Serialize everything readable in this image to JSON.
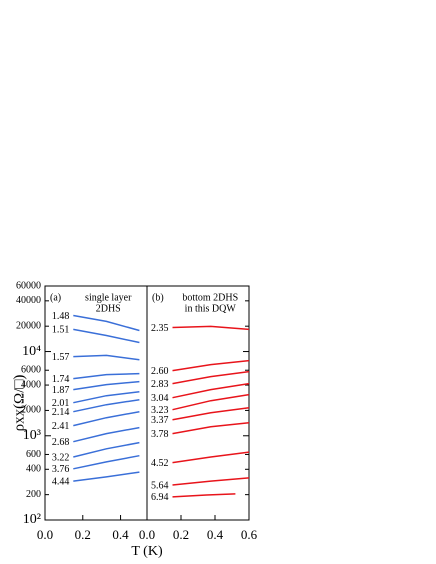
{
  "chart_data": [
    {
      "type": "line",
      "ylabel": "ρxx(Ω/□)",
      "xlabel": "T (K)",
      "yscale": "log",
      "color": "#3a6fd8",
      "annotations": [
        "(a)",
        "single layer",
        "2DHS"
      ],
      "xlim": [
        0,
        0.54
      ],
      "xticks": [
        {
          "value": 0,
          "label": "0.0"
        },
        {
          "value": 0.2,
          "label": "0.2"
        },
        {
          "value": 0.4,
          "label": "0.4"
        }
      ],
      "ylim": [
        100,
        60000
      ],
      "yticks": [
        {
          "value": 100,
          "label": "10²"
        },
        200,
        400,
        600,
        {
          "value": 1000,
          "label": "10³"
        },
        2000,
        4000,
        6000,
        {
          "value": 10000,
          "label": "10⁴"
        },
        20000,
        40000,
        60000
      ],
      "series": [
        {
          "name": "1.48",
          "x": [
            0.15,
            0.325,
            0.5
          ],
          "values": [
            26800,
            22800,
            17800
          ]
        },
        {
          "name": "1.51",
          "x": [
            0.15,
            0.325,
            0.5
          ],
          "values": [
            18300,
            15500,
            12800
          ]
        },
        {
          "name": "1.57",
          "x": [
            0.15,
            0.325,
            0.5
          ],
          "values": [
            8700,
            9000,
            8000
          ]
        },
        {
          "name": "1.74",
          "x": [
            0.15,
            0.325,
            0.5
          ],
          "values": [
            4770,
            5320,
            5470
          ]
        },
        {
          "name": "1.87",
          "x": [
            0.15,
            0.325,
            0.5
          ],
          "values": [
            3530,
            4050,
            4400
          ]
        },
        {
          "name": "2.01",
          "x": [
            0.15,
            0.325,
            0.5
          ],
          "values": [
            2470,
            2990,
            3340
          ]
        },
        {
          "name": "2.14",
          "x": [
            0.15,
            0.325,
            0.5
          ],
          "values": [
            1930,
            2340,
            2680
          ]
        },
        {
          "name": "2.41",
          "x": [
            0.15,
            0.325,
            0.5
          ],
          "values": [
            1320,
            1640,
            1930
          ]
        },
        {
          "name": "2.68",
          "x": [
            0.15,
            0.325,
            0.5
          ],
          "values": [
            850,
            1060,
            1250
          ]
        },
        {
          "name": "3.22",
          "x": [
            0.15,
            0.325,
            0.5
          ],
          "values": [
            560,
            700,
            830
          ]
        },
        {
          "name": "3.76",
          "x": [
            0.15,
            0.325,
            0.5
          ],
          "values": [
            405,
            490,
            580
          ]
        },
        {
          "name": "4.44",
          "x": [
            0.15,
            0.325,
            0.5
          ],
          "values": [
            290,
            325,
            370
          ]
        }
      ]
    },
    {
      "type": "line",
      "yscale": "log",
      "color": "#e8141b",
      "annotations": [
        "(b)",
        "bottom 2DHS",
        "in this DQW"
      ],
      "xlim": [
        0,
        0.6
      ],
      "xticks": [
        {
          "value": 0,
          "label": "0.0"
        },
        {
          "value": 0.2,
          "label": "0.2"
        },
        {
          "value": 0.4,
          "label": "0.4"
        },
        {
          "value": 0.6,
          "label": "0.6"
        }
      ],
      "ylim": [
        100,
        60000
      ],
      "series": [
        {
          "name": "2.35",
          "x": [
            0.15,
            0.375,
            0.6
          ],
          "values": [
            19300,
            19900,
            18300
          ]
        },
        {
          "name": "2.60",
          "x": [
            0.15,
            0.375,
            0.6
          ],
          "values": [
            5940,
            7000,
            7810
          ]
        },
        {
          "name": "2.83",
          "x": [
            0.15,
            0.375,
            0.6
          ],
          "values": [
            4160,
            5040,
            5780
          ]
        },
        {
          "name": "3.04",
          "x": [
            0.15,
            0.375,
            0.6
          ],
          "values": [
            2830,
            3530,
            4160
          ]
        },
        {
          "name": "3.23",
          "x": [
            0.15,
            0.375,
            0.6
          ],
          "values": [
            2040,
            2610,
            3080
          ]
        },
        {
          "name": "3.37",
          "x": [
            0.15,
            0.375,
            0.6
          ],
          "values": [
            1550,
            1880,
            2150
          ]
        },
        {
          "name": "3.78",
          "x": [
            0.15,
            0.375,
            0.6
          ],
          "values": [
            1060,
            1280,
            1430
          ]
        },
        {
          "name": "4.52",
          "x": [
            0.15,
            0.375,
            0.6
          ],
          "values": [
            480,
            560,
            640
          ]
        },
        {
          "name": "5.64",
          "x": [
            0.15,
            0.375,
            0.6
          ],
          "values": [
            260,
            290,
            316
          ]
        },
        {
          "name": "6.94",
          "x": [
            0.15,
            0.35,
            0.52
          ],
          "values": [
            188,
            198,
            204
          ]
        }
      ]
    }
  ]
}
